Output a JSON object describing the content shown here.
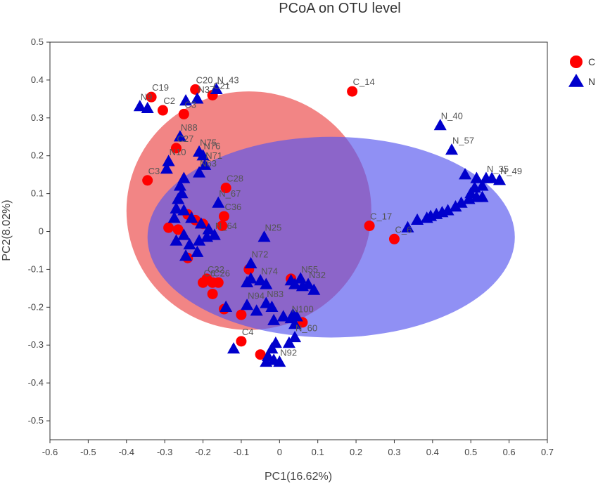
{
  "chart_data": {
    "type": "scatter",
    "title": "PCoA on OTU level",
    "xlabel": "PC1(16.62%)",
    "ylabel": "PC2(8.02%)",
    "xlim": [
      -0.6,
      0.7
    ],
    "ylim": [
      -0.55,
      0.5
    ],
    "xticks": [
      "-0.6",
      "-0.5",
      "-0.4",
      "-0.3",
      "-0.2",
      "-0.1",
      "0",
      "0.1",
      "0.2",
      "0.3",
      "0.4",
      "0.5",
      "0.6",
      "0.7"
    ],
    "yticks": [
      "0.5",
      "0.4",
      "0.3",
      "0.2",
      "0.1",
      "0",
      "-0.1",
      "-0.2",
      "-0.3",
      "-0.4",
      "-0.5"
    ],
    "grid": false,
    "legend_position": "right",
    "colors": {
      "C": "#ff0000",
      "N": "#0000cc",
      "C_ellipse": "#f07070",
      "N_ellipse": "#5555ee"
    },
    "series": [
      {
        "name": "C",
        "marker": "circle",
        "points": [
          {
            "x": -0.335,
            "y": 0.355,
            "label": "C19"
          },
          {
            "x": -0.305,
            "y": 0.32,
            "label": "C2"
          },
          {
            "x": -0.25,
            "y": 0.31,
            "label": "C3"
          },
          {
            "x": -0.22,
            "y": 0.375,
            "label": "C20"
          },
          {
            "x": -0.175,
            "y": 0.36,
            "label": "C21"
          },
          {
            "x": 0.19,
            "y": 0.37,
            "label": "C_14"
          },
          {
            "x": -0.345,
            "y": 0.135,
            "label": "C3"
          },
          {
            "x": -0.27,
            "y": 0.22,
            "label": "C27"
          },
          {
            "x": -0.14,
            "y": 0.115,
            "label": "C28"
          },
          {
            "x": -0.24,
            "y": 0.045,
            "label": ""
          },
          {
            "x": -0.145,
            "y": 0.04,
            "label": "C36"
          },
          {
            "x": -0.22,
            "y": 0.03,
            "label": ""
          },
          {
            "x": -0.29,
            "y": 0.01,
            "label": ""
          },
          {
            "x": -0.265,
            "y": 0.005,
            "label": ""
          },
          {
            "x": -0.2,
            "y": 0.02,
            "label": ""
          },
          {
            "x": -0.15,
            "y": 0.015,
            "label": ""
          },
          {
            "x": -0.24,
            "y": -0.07,
            "label": ""
          },
          {
            "x": 0.235,
            "y": 0.015,
            "label": "C_17"
          },
          {
            "x": 0.3,
            "y": -0.02,
            "label": "C_6"
          },
          {
            "x": -0.2,
            "y": -0.135,
            "label": "C6"
          },
          {
            "x": -0.19,
            "y": -0.125,
            "label": "C32"
          },
          {
            "x": -0.175,
            "y": -0.135,
            "label": "C26"
          },
          {
            "x": -0.16,
            "y": -0.135,
            "label": ""
          },
          {
            "x": -0.175,
            "y": -0.165,
            "label": ""
          },
          {
            "x": -0.145,
            "y": -0.205,
            "label": ""
          },
          {
            "x": -0.1,
            "y": -0.22,
            "label": ""
          },
          {
            "x": -0.08,
            "y": -0.1,
            "label": ""
          },
          {
            "x": 0.03,
            "y": -0.125,
            "label": ""
          },
          {
            "x": 0.06,
            "y": -0.24,
            "label": ""
          },
          {
            "x": -0.1,
            "y": -0.29,
            "label": "C4"
          },
          {
            "x": -0.05,
            "y": -0.325,
            "label": ""
          }
        ]
      },
      {
        "name": "N",
        "marker": "triangle",
        "points": [
          {
            "x": -0.365,
            "y": 0.33,
            "label": "N9"
          },
          {
            "x": -0.345,
            "y": 0.325,
            "label": ""
          },
          {
            "x": -0.245,
            "y": 0.345,
            "label": ""
          },
          {
            "x": -0.215,
            "y": 0.35,
            "label": "N37"
          },
          {
            "x": -0.165,
            "y": 0.375,
            "label": "N_43"
          },
          {
            "x": -0.26,
            "y": 0.25,
            "label": "N88"
          },
          {
            "x": -0.21,
            "y": 0.21,
            "label": "N75"
          },
          {
            "x": -0.2,
            "y": 0.2,
            "label": "N76"
          },
          {
            "x": -0.195,
            "y": 0.175,
            "label": "N71"
          },
          {
            "x": -0.29,
            "y": 0.185,
            "label": "N10"
          },
          {
            "x": -0.295,
            "y": 0.165,
            "label": ""
          },
          {
            "x": -0.21,
            "y": 0.155,
            "label": "N63"
          },
          {
            "x": -0.25,
            "y": 0.14,
            "label": ""
          },
          {
            "x": -0.26,
            "y": 0.12,
            "label": ""
          },
          {
            "x": -0.255,
            "y": 0.1,
            "label": ""
          },
          {
            "x": -0.265,
            "y": 0.085,
            "label": ""
          },
          {
            "x": -0.27,
            "y": 0.06,
            "label": ""
          },
          {
            "x": -0.25,
            "y": 0.055,
            "label": ""
          },
          {
            "x": -0.275,
            "y": 0.035,
            "label": ""
          },
          {
            "x": -0.16,
            "y": 0.075,
            "label": "N_67"
          },
          {
            "x": -0.23,
            "y": 0.035,
            "label": ""
          },
          {
            "x": -0.205,
            "y": 0.02,
            "label": ""
          },
          {
            "x": -0.185,
            "y": 0.005,
            "label": ""
          },
          {
            "x": -0.25,
            "y": -0.01,
            "label": ""
          },
          {
            "x": -0.27,
            "y": -0.025,
            "label": ""
          },
          {
            "x": -0.235,
            "y": -0.035,
            "label": ""
          },
          {
            "x": -0.21,
            "y": -0.025,
            "label": ""
          },
          {
            "x": -0.19,
            "y": -0.015,
            "label": ""
          },
          {
            "x": -0.17,
            "y": -0.01,
            "label": "N_64"
          },
          {
            "x": -0.215,
            "y": -0.055,
            "label": ""
          },
          {
            "x": -0.245,
            "y": -0.065,
            "label": ""
          },
          {
            "x": -0.04,
            "y": -0.015,
            "label": "N25"
          },
          {
            "x": -0.075,
            "y": -0.085,
            "label": "N72"
          },
          {
            "x": -0.075,
            "y": -0.125,
            "label": ""
          },
          {
            "x": -0.05,
            "y": -0.13,
            "label": "N74"
          },
          {
            "x": -0.035,
            "y": -0.14,
            "label": ""
          },
          {
            "x": -0.085,
            "y": -0.135,
            "label": ""
          },
          {
            "x": 0.03,
            "y": -0.13,
            "label": ""
          },
          {
            "x": 0.055,
            "y": -0.125,
            "label": "N55"
          },
          {
            "x": 0.06,
            "y": -0.145,
            "label": ""
          },
          {
            "x": 0.04,
            "y": -0.14,
            "label": ""
          },
          {
            "x": 0.075,
            "y": -0.14,
            "label": "N32"
          },
          {
            "x": 0.09,
            "y": -0.155,
            "label": ""
          },
          {
            "x": -0.14,
            "y": -0.2,
            "label": ""
          },
          {
            "x": -0.085,
            "y": -0.195,
            "label": "N94"
          },
          {
            "x": -0.06,
            "y": -0.21,
            "label": ""
          },
          {
            "x": -0.035,
            "y": -0.19,
            "label": "N83"
          },
          {
            "x": -0.02,
            "y": -0.2,
            "label": ""
          },
          {
            "x": -0.015,
            "y": -0.235,
            "label": ""
          },
          {
            "x": 0.01,
            "y": -0.225,
            "label": ""
          },
          {
            "x": 0.03,
            "y": -0.23,
            "label": "N100"
          },
          {
            "x": 0.035,
            "y": -0.22,
            "label": ""
          },
          {
            "x": 0.045,
            "y": -0.225,
            "label": ""
          },
          {
            "x": 0.04,
            "y": -0.245,
            "label": ""
          },
          {
            "x": 0.04,
            "y": -0.28,
            "label": "N_60"
          },
          {
            "x": 0.025,
            "y": -0.295,
            "label": ""
          },
          {
            "x": -0.01,
            "y": -0.295,
            "label": ""
          },
          {
            "x": -0.02,
            "y": -0.31,
            "label": ""
          },
          {
            "x": -0.12,
            "y": -0.31,
            "label": ""
          },
          {
            "x": -0.03,
            "y": -0.33,
            "label": ""
          },
          {
            "x": -0.035,
            "y": -0.345,
            "label": ""
          },
          {
            "x": -0.015,
            "y": -0.34,
            "label": ""
          },
          {
            "x": 0.0,
            "y": -0.345,
            "label": "N92"
          },
          {
            "x": 0.42,
            "y": 0.28,
            "label": "N_40"
          },
          {
            "x": 0.45,
            "y": 0.215,
            "label": "N_57"
          },
          {
            "x": 0.485,
            "y": 0.15,
            "label": ""
          },
          {
            "x": 0.515,
            "y": 0.14,
            "label": ""
          },
          {
            "x": 0.54,
            "y": 0.14,
            "label": "N_35"
          },
          {
            "x": 0.555,
            "y": 0.14,
            "label": ""
          },
          {
            "x": 0.575,
            "y": 0.135,
            "label": "N_49"
          },
          {
            "x": 0.51,
            "y": 0.115,
            "label": ""
          },
          {
            "x": 0.53,
            "y": 0.12,
            "label": ""
          },
          {
            "x": 0.5,
            "y": 0.1,
            "label": ""
          },
          {
            "x": 0.515,
            "y": 0.09,
            "label": ""
          },
          {
            "x": 0.53,
            "y": 0.09,
            "label": ""
          },
          {
            "x": 0.495,
            "y": 0.085,
            "label": ""
          },
          {
            "x": 0.475,
            "y": 0.075,
            "label": ""
          },
          {
            "x": 0.46,
            "y": 0.065,
            "label": ""
          },
          {
            "x": 0.44,
            "y": 0.055,
            "label": ""
          },
          {
            "x": 0.425,
            "y": 0.05,
            "label": ""
          },
          {
            "x": 0.41,
            "y": 0.045,
            "label": ""
          },
          {
            "x": 0.395,
            "y": 0.04,
            "label": ""
          },
          {
            "x": 0.385,
            "y": 0.035,
            "label": ""
          },
          {
            "x": 0.36,
            "y": 0.03,
            "label": ""
          },
          {
            "x": 0.335,
            "y": 0.01,
            "label": ""
          }
        ]
      }
    ],
    "ellipses": [
      {
        "series": "C",
        "cx": -0.08,
        "cy": 0.055,
        "rx": 0.32,
        "ry": 0.315
      },
      {
        "series": "N",
        "cx": 0.135,
        "cy": -0.015,
        "rx": 0.48,
        "ry": 0.265
      }
    ]
  }
}
